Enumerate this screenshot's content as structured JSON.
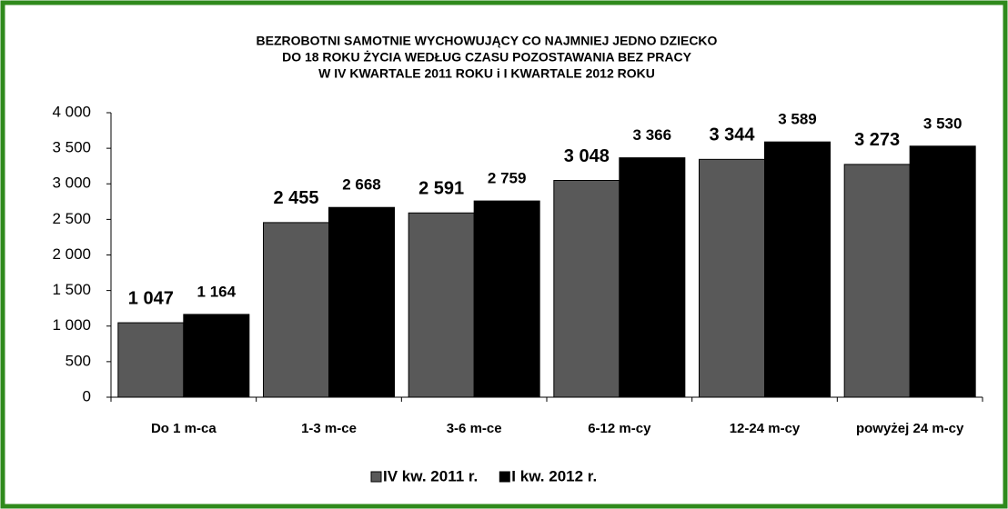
{
  "chart_data": {
    "type": "bar",
    "title": [
      "BEZROBOTNI SAMOTNIE WYCHOWUJĄCY CO NAJMNIEJ JEDNO DZIECKO",
      "DO 18 ROKU ŻYCIA WEDŁUG  CZASU POZOSTAWANIA BEZ PRACY",
      "W  IV KWARTALE 2011 ROKU i  I KWARTALE 2012 ROKU"
    ],
    "categories": [
      "Do 1 m-ca",
      "1-3 m-ce",
      "3-6 m-ce",
      "6-12 m-cy",
      "12-24 m-cy",
      "powyżej 24 m-cy"
    ],
    "series": [
      {
        "name": "IV  kw. 2011 r.",
        "color": "#595959",
        "values": [
          1047,
          2455,
          2591,
          3048,
          3344,
          3273
        ],
        "value_labels": [
          "1 047",
          "2 455",
          "2 591",
          "3 048",
          "3 344",
          "3 273"
        ]
      },
      {
        "name": "I  kw. 2012 r.",
        "color": "#000000",
        "values": [
          1164,
          2668,
          2759,
          3366,
          3589,
          3530
        ],
        "value_labels": [
          "1 164",
          "2 668",
          "2 759",
          "3 366",
          "3 589",
          "3 530"
        ]
      }
    ],
    "ylim": [
      0,
      4000
    ],
    "yticks": [
      0,
      {
        "value": 500,
        "label": "500"
      },
      {
        "value": 1000,
        "label": "1 000"
      },
      {
        "value": 1500,
        "label": "1 500"
      },
      {
        "value": 2000,
        "label": "2 000"
      },
      {
        "value": 2500,
        "label": "2 500"
      },
      {
        "value": 3000,
        "label": "3 000"
      },
      {
        "value": 3500,
        "label": "3 500"
      },
      {
        "value": 4000,
        "label": "4 000"
      }
    ],
    "legend": "bottom"
  }
}
